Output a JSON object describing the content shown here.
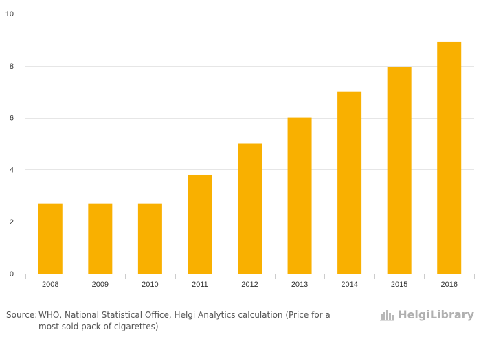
{
  "chart_data": {
    "type": "bar",
    "categories": [
      "2008",
      "2009",
      "2010",
      "2011",
      "2012",
      "2013",
      "2014",
      "2015",
      "2016"
    ],
    "values": [
      2.7,
      2.7,
      2.7,
      3.8,
      5.0,
      6.0,
      7.0,
      7.95,
      8.92
    ],
    "ylim": [
      0,
      10
    ],
    "y_ticks": [
      0,
      2,
      4,
      6,
      8,
      10
    ],
    "grid": true,
    "bar_color": "#f9b000",
    "gridline_color": "#e6e6e6"
  },
  "footer": {
    "source_label": "Source:",
    "source_text": "WHO, National Statistical Office, Helgi Analytics calculation (Price for a most sold pack of cigarettes)"
  },
  "brand": {
    "name": "HelgiLibrary",
    "icon": "skyline-logo-icon"
  }
}
